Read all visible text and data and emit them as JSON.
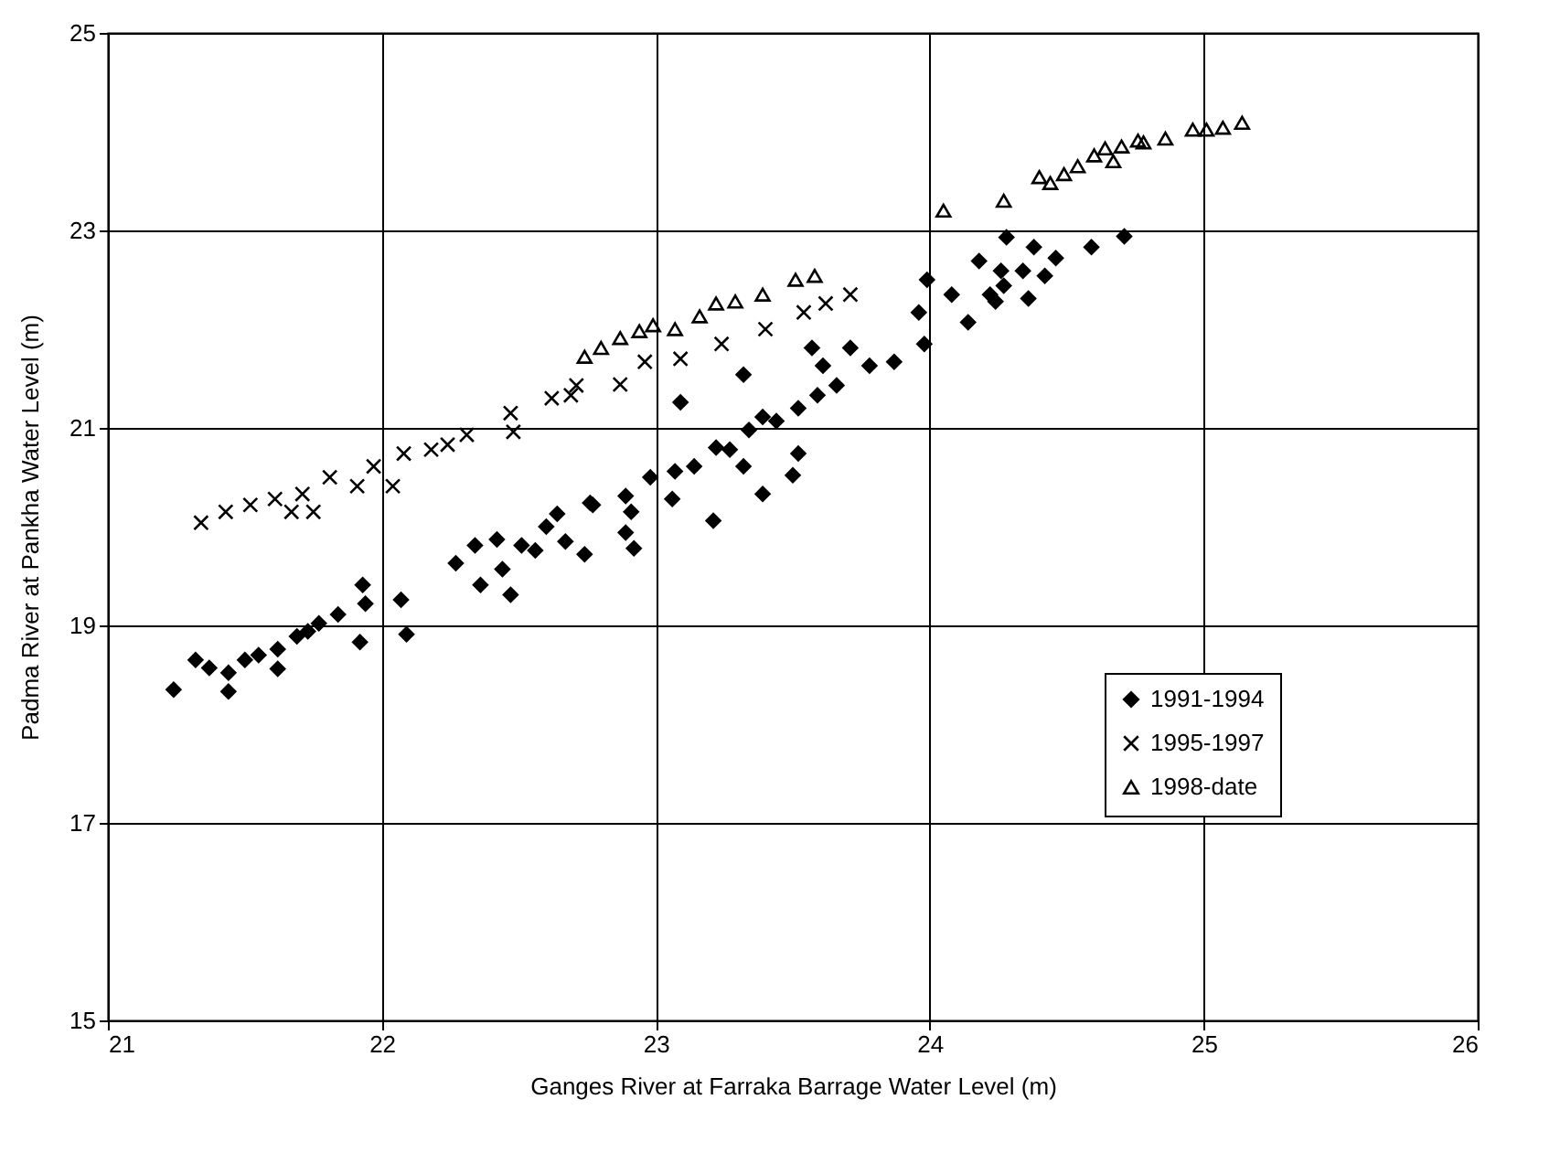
{
  "chart_data": {
    "type": "scatter",
    "xlabel": "Ganges River at Farraka Barrage Water Level (m)",
    "ylabel": "Padma River at Pankha Water Level (m)",
    "xlim": [
      21,
      26
    ],
    "xticks": [
      21,
      22,
      23,
      24,
      25,
      26
    ],
    "ylim": [
      15,
      25
    ],
    "yticks": [
      15,
      17,
      19,
      21,
      23,
      25
    ],
    "grid": true,
    "legend": "bottom right",
    "series": [
      {
        "name": "1991-1994",
        "color": "#000000",
        "marker": "diamond",
        "x": [
          21.24,
          21.32,
          21.37,
          21.44,
          21.44,
          21.5,
          21.55,
          21.62,
          21.62,
          21.69,
          21.73,
          21.77,
          21.84,
          21.92,
          21.93,
          21.94,
          22.07,
          22.09,
          22.27,
          22.34,
          22.36,
          22.42,
          22.44,
          22.47,
          22.51,
          22.56,
          22.6,
          22.64,
          22.67,
          22.74,
          22.77,
          22.76,
          22.89,
          22.91,
          22.89,
          22.92,
          22.98,
          23.06,
          23.07,
          23.14,
          23.21,
          23.22,
          23.27,
          23.32,
          23.34,
          23.39,
          23.39,
          23.44,
          23.5,
          23.52,
          23.52,
          23.59,
          23.66,
          23.09,
          23.32,
          23.57,
          23.61,
          23.71,
          23.78,
          23.87,
          23.96,
          23.98,
          23.99,
          24.08,
          24.14,
          24.22,
          24.28,
          24.38,
          24.18,
          24.26,
          24.34,
          24.46,
          24.42,
          24.27,
          24.24,
          24.36,
          24.59,
          24.71
        ],
        "values": [
          18.35,
          18.65,
          18.57,
          18.33,
          18.52,
          18.65,
          18.7,
          18.56,
          18.76,
          18.89,
          18.94,
          19.02,
          19.11,
          18.83,
          19.41,
          19.22,
          19.26,
          18.91,
          19.63,
          19.81,
          19.41,
          19.87,
          19.57,
          19.31,
          19.81,
          19.76,
          20.0,
          20.13,
          19.85,
          19.72,
          20.22,
          20.24,
          20.31,
          20.15,
          19.94,
          19.78,
          20.5,
          20.28,
          20.56,
          20.61,
          20.06,
          20.8,
          20.78,
          20.61,
          20.98,
          20.33,
          21.11,
          21.07,
          20.52,
          20.74,
          21.2,
          21.33,
          21.43,
          21.26,
          21.54,
          21.81,
          21.63,
          21.81,
          21.63,
          21.67,
          22.17,
          21.85,
          22.5,
          22.35,
          22.07,
          22.35,
          22.93,
          22.83,
          22.69,
          22.59,
          22.59,
          22.72,
          22.54,
          22.44,
          22.28,
          22.31,
          22.83,
          22.94
        ]
      },
      {
        "name": "1995-1997",
        "color": "#000000",
        "marker": "cross",
        "x": [
          21.34,
          21.43,
          21.52,
          21.61,
          21.67,
          21.71,
          21.75,
          21.81,
          21.91,
          21.97,
          22.04,
          22.08,
          22.18,
          22.24,
          22.31,
          22.47,
          22.48,
          22.62,
          22.71,
          22.69,
          22.87,
          22.96,
          23.09,
          23.24,
          23.4,
          23.54,
          23.62,
          23.71
        ],
        "values": [
          20.04,
          20.15,
          20.22,
          20.28,
          20.15,
          20.33,
          20.15,
          20.5,
          20.41,
          20.61,
          20.41,
          20.74,
          20.78,
          20.83,
          20.93,
          21.15,
          20.96,
          21.3,
          21.43,
          21.33,
          21.44,
          21.67,
          21.7,
          21.85,
          22.0,
          22.17,
          22.26,
          22.35
        ]
      },
      {
        "name": "1998-date",
        "color": "#000000",
        "marker": "triangle",
        "x": [
          22.74,
          22.8,
          22.87,
          22.94,
          22.99,
          23.07,
          23.16,
          23.22,
          23.29,
          23.39,
          23.51,
          23.58,
          24.05,
          24.27,
          24.4,
          24.44,
          24.49,
          24.54,
          24.6,
          24.64,
          24.67,
          24.7,
          24.76,
          24.78,
          24.86,
          24.96,
          25.01,
          25.07,
          25.14
        ],
        "values": [
          21.72,
          21.81,
          21.91,
          21.98,
          22.04,
          22.0,
          22.13,
          22.26,
          22.28,
          22.35,
          22.5,
          22.54,
          23.2,
          23.3,
          23.54,
          23.48,
          23.57,
          23.65,
          23.76,
          23.83,
          23.7,
          23.85,
          23.91,
          23.89,
          23.93,
          24.02,
          24.02,
          24.04,
          24.09
        ]
      }
    ]
  }
}
